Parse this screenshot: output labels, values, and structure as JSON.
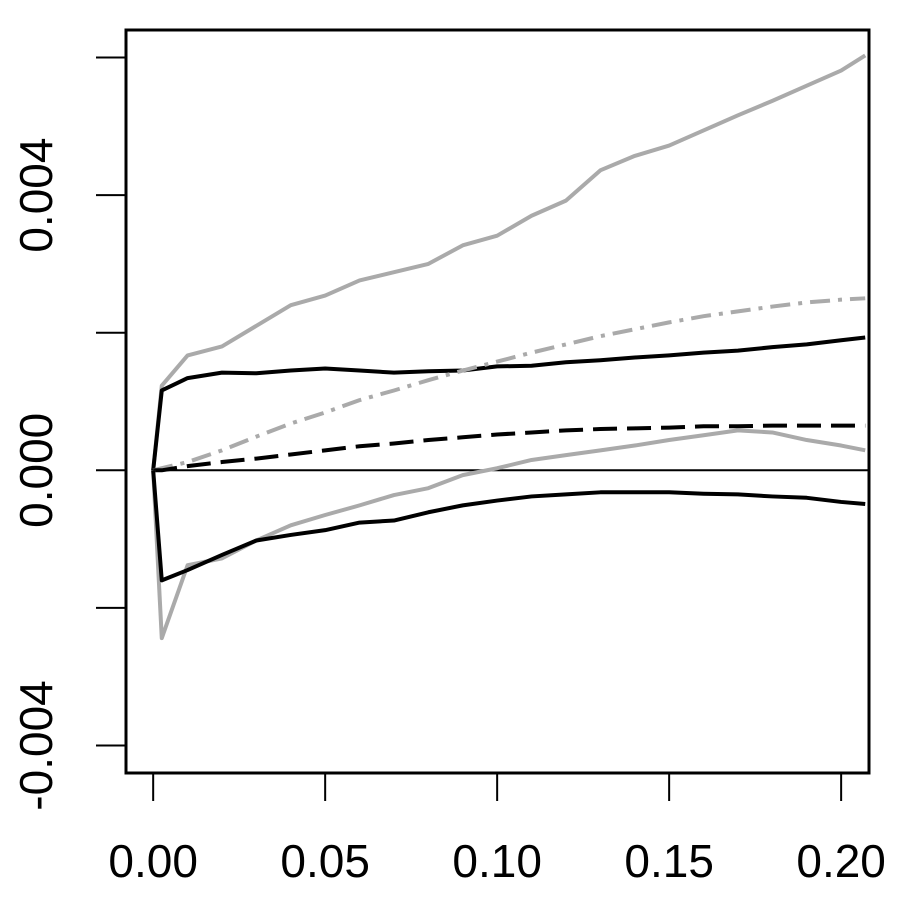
{
  "chart_data": {
    "type": "line",
    "xlim": [
      -0.0079,
      0.2081
    ],
    "ylim": [
      -0.0044,
      0.0064
    ],
    "xticks": [
      {
        "value": 0,
        "label": "0.00"
      },
      {
        "value": 0.05,
        "label": "0.05"
      },
      {
        "value": 0.1,
        "label": "0.10"
      },
      {
        "value": 0.15,
        "label": "0.15"
      },
      {
        "value": 0.2,
        "label": "0.20"
      }
    ],
    "yticks": [
      {
        "value": -0.004,
        "label": "-0.004"
      },
      {
        "value": 0,
        "label": "0.000"
      },
      {
        "value": 0.004,
        "label": "0.004"
      }
    ],
    "yticks_unlabeled": [
      -0.002,
      0.002,
      0.006
    ],
    "hline": 0,
    "x": [
      0,
      0.0025,
      0.01,
      0.02,
      0.03,
      0.04,
      0.05,
      0.06,
      0.07,
      0.08,
      0.09,
      0.1,
      0.11,
      0.12,
      0.13,
      0.14,
      0.15,
      0.16,
      0.17,
      0.18,
      0.19,
      0.2,
      0.207
    ],
    "series": [
      {
        "color": "#aaaaaa",
        "dash": "solid",
        "values": [
          0,
          0.00123,
          0.00167,
          0.0018,
          0.0021,
          0.0024,
          0.00254,
          0.00276,
          0.00288,
          0.003,
          0.00327,
          0.00341,
          0.0037,
          0.00392,
          0.00436,
          0.00457,
          0.00472,
          0.00494,
          0.00516,
          0.00537,
          0.00559,
          0.00581,
          0.00603
        ]
      },
      {
        "color": "#000000",
        "dash": "solid",
        "values": [
          0,
          0.00116,
          0.00134,
          0.00142,
          0.00141,
          0.00145,
          0.00148,
          0.00145,
          0.00142,
          0.00144,
          0.00145,
          0.00151,
          0.00152,
          0.00157,
          0.0016,
          0.00164,
          0.00167,
          0.00171,
          0.00174,
          0.00179,
          0.00183,
          0.00189,
          0.00193
        ]
      },
      {
        "color": "#aaaaaa",
        "dash": "dashdot",
        "values": [
          0,
          3e-05,
          0.00012,
          0.00029,
          0.00049,
          0.00068,
          0.00084,
          0.00102,
          0.00116,
          0.00131,
          0.00145,
          0.00158,
          0.00171,
          0.00183,
          0.00195,
          0.00205,
          0.00215,
          0.00224,
          0.00231,
          0.00238,
          0.00244,
          0.00248,
          0.0025
        ]
      },
      {
        "color": "#000000",
        "dash": "dashed",
        "values": [
          0,
          0,
          6e-05,
          0.00012,
          0.00017,
          0.00023,
          0.00029,
          0.00035,
          0.00039,
          0.00044,
          0.00048,
          0.00052,
          0.00055,
          0.00058,
          0.0006,
          0.00061,
          0.00062,
          0.00064,
          0.00064,
          0.00065,
          0.00065,
          0.00065,
          0.00065
        ]
      },
      {
        "color": "#aaaaaa",
        "dash": "solid",
        "values": [
          0,
          -0.00244,
          -0.00138,
          -0.00128,
          -0.00102,
          -0.0008,
          -0.00065,
          -0.00051,
          -0.00036,
          -0.00026,
          -7e-05,
          3e-05,
          0.00015,
          0.00022,
          0.00029,
          0.00036,
          0.00044,
          0.00051,
          0.00058,
          0.00055,
          0.00044,
          0.00036,
          0.00029
        ]
      },
      {
        "color": "#000000",
        "dash": "solid",
        "values": [
          0,
          -0.0016,
          -0.00145,
          -0.00123,
          -0.00102,
          -0.00094,
          -0.00087,
          -0.00076,
          -0.00073,
          -0.00061,
          -0.00051,
          -0.00044,
          -0.00038,
          -0.00035,
          -0.00032,
          -0.00032,
          -0.00032,
          -0.00034,
          -0.00035,
          -0.00038,
          -0.0004,
          -0.00046,
          -0.00049
        ]
      }
    ]
  }
}
